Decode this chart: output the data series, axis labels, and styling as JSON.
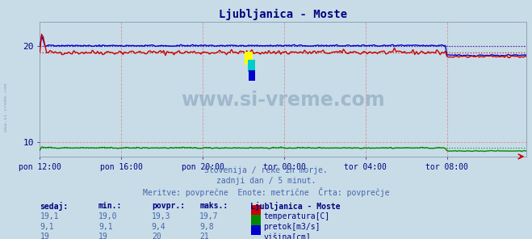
{
  "title": "Ljubljanica - Moste",
  "title_color": "#000080",
  "bg_color": "#c8dce8",
  "plot_bg_color": "#c8dce8",
  "xlabel_ticks": [
    "pon 12:00",
    "pon 16:00",
    "pon 20:00",
    "tor 00:00",
    "tor 04:00",
    "tor 08:00"
  ],
  "xlim": [
    0,
    287
  ],
  "ylim": [
    8.5,
    22.5
  ],
  "yticks": [
    10,
    20
  ],
  "watermark": "www.si-vreme.com",
  "watermark_color": "#a0b8cc",
  "subtitle1": "Slovenija / reke in morje.",
  "subtitle2": "zadnji dan / 5 minut.",
  "subtitle3": "Meritve: povprečne  Enote: metrične  Črta: povprečje",
  "subtitle_color": "#4466aa",
  "temp_color": "#cc0000",
  "temp_avg": 19.3,
  "flow_color": "#008800",
  "flow_avg": 9.4,
  "height_color": "#0000cc",
  "height_avg": 20.0,
  "table_header_color": "#000080",
  "table_value_color": "#4466aa",
  "legend_color": "#000080",
  "n_points": 288,
  "tick_label_color": "#000080",
  "axis_color": "#000080",
  "vgrid_color": "#dd6666",
  "hgrid_color": "#dd6666"
}
